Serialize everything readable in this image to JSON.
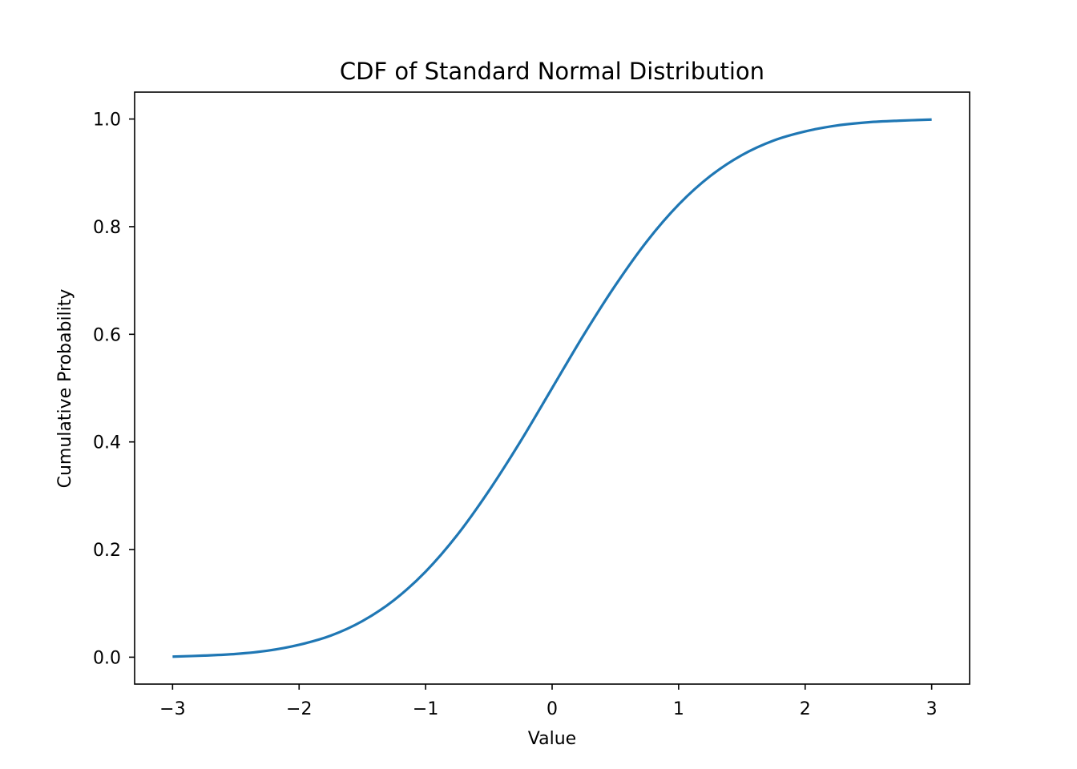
{
  "chart_data": {
    "type": "line",
    "title": "CDF of Standard Normal Distribution",
    "xlabel": "Value",
    "ylabel": "Cumulative Probability",
    "xlim": [
      -3.3,
      3.3
    ],
    "ylim": [
      -0.05,
      1.05
    ],
    "x_ticks": [
      -3,
      -2,
      -1,
      0,
      1,
      2,
      3
    ],
    "x_tick_labels": [
      "−3",
      "−2",
      "−1",
      "0",
      "1",
      "2",
      "3"
    ],
    "y_ticks": [
      0.0,
      0.2,
      0.4,
      0.6,
      0.8,
      1.0
    ],
    "y_tick_labels": [
      "0.0",
      "0.2",
      "0.4",
      "0.6",
      "0.8",
      "1.0"
    ],
    "grid": false,
    "series": [
      {
        "color": "#1f77b4",
        "x": [
          -3.0,
          -2.75,
          -2.5,
          -2.25,
          -2.0,
          -1.75,
          -1.5,
          -1.25,
          -1.0,
          -0.75,
          -0.5,
          -0.25,
          0.0,
          0.25,
          0.5,
          0.75,
          1.0,
          1.25,
          1.5,
          1.75,
          2.0,
          2.25,
          2.5,
          2.75,
          3.0
        ],
        "y": [
          0.001,
          0.003,
          0.006,
          0.012,
          0.023,
          0.04,
          0.067,
          0.106,
          0.159,
          0.227,
          0.309,
          0.401,
          0.5,
          0.599,
          0.691,
          0.773,
          0.841,
          0.894,
          0.933,
          0.96,
          0.977,
          0.988,
          0.994,
          0.997,
          0.999
        ]
      }
    ]
  }
}
